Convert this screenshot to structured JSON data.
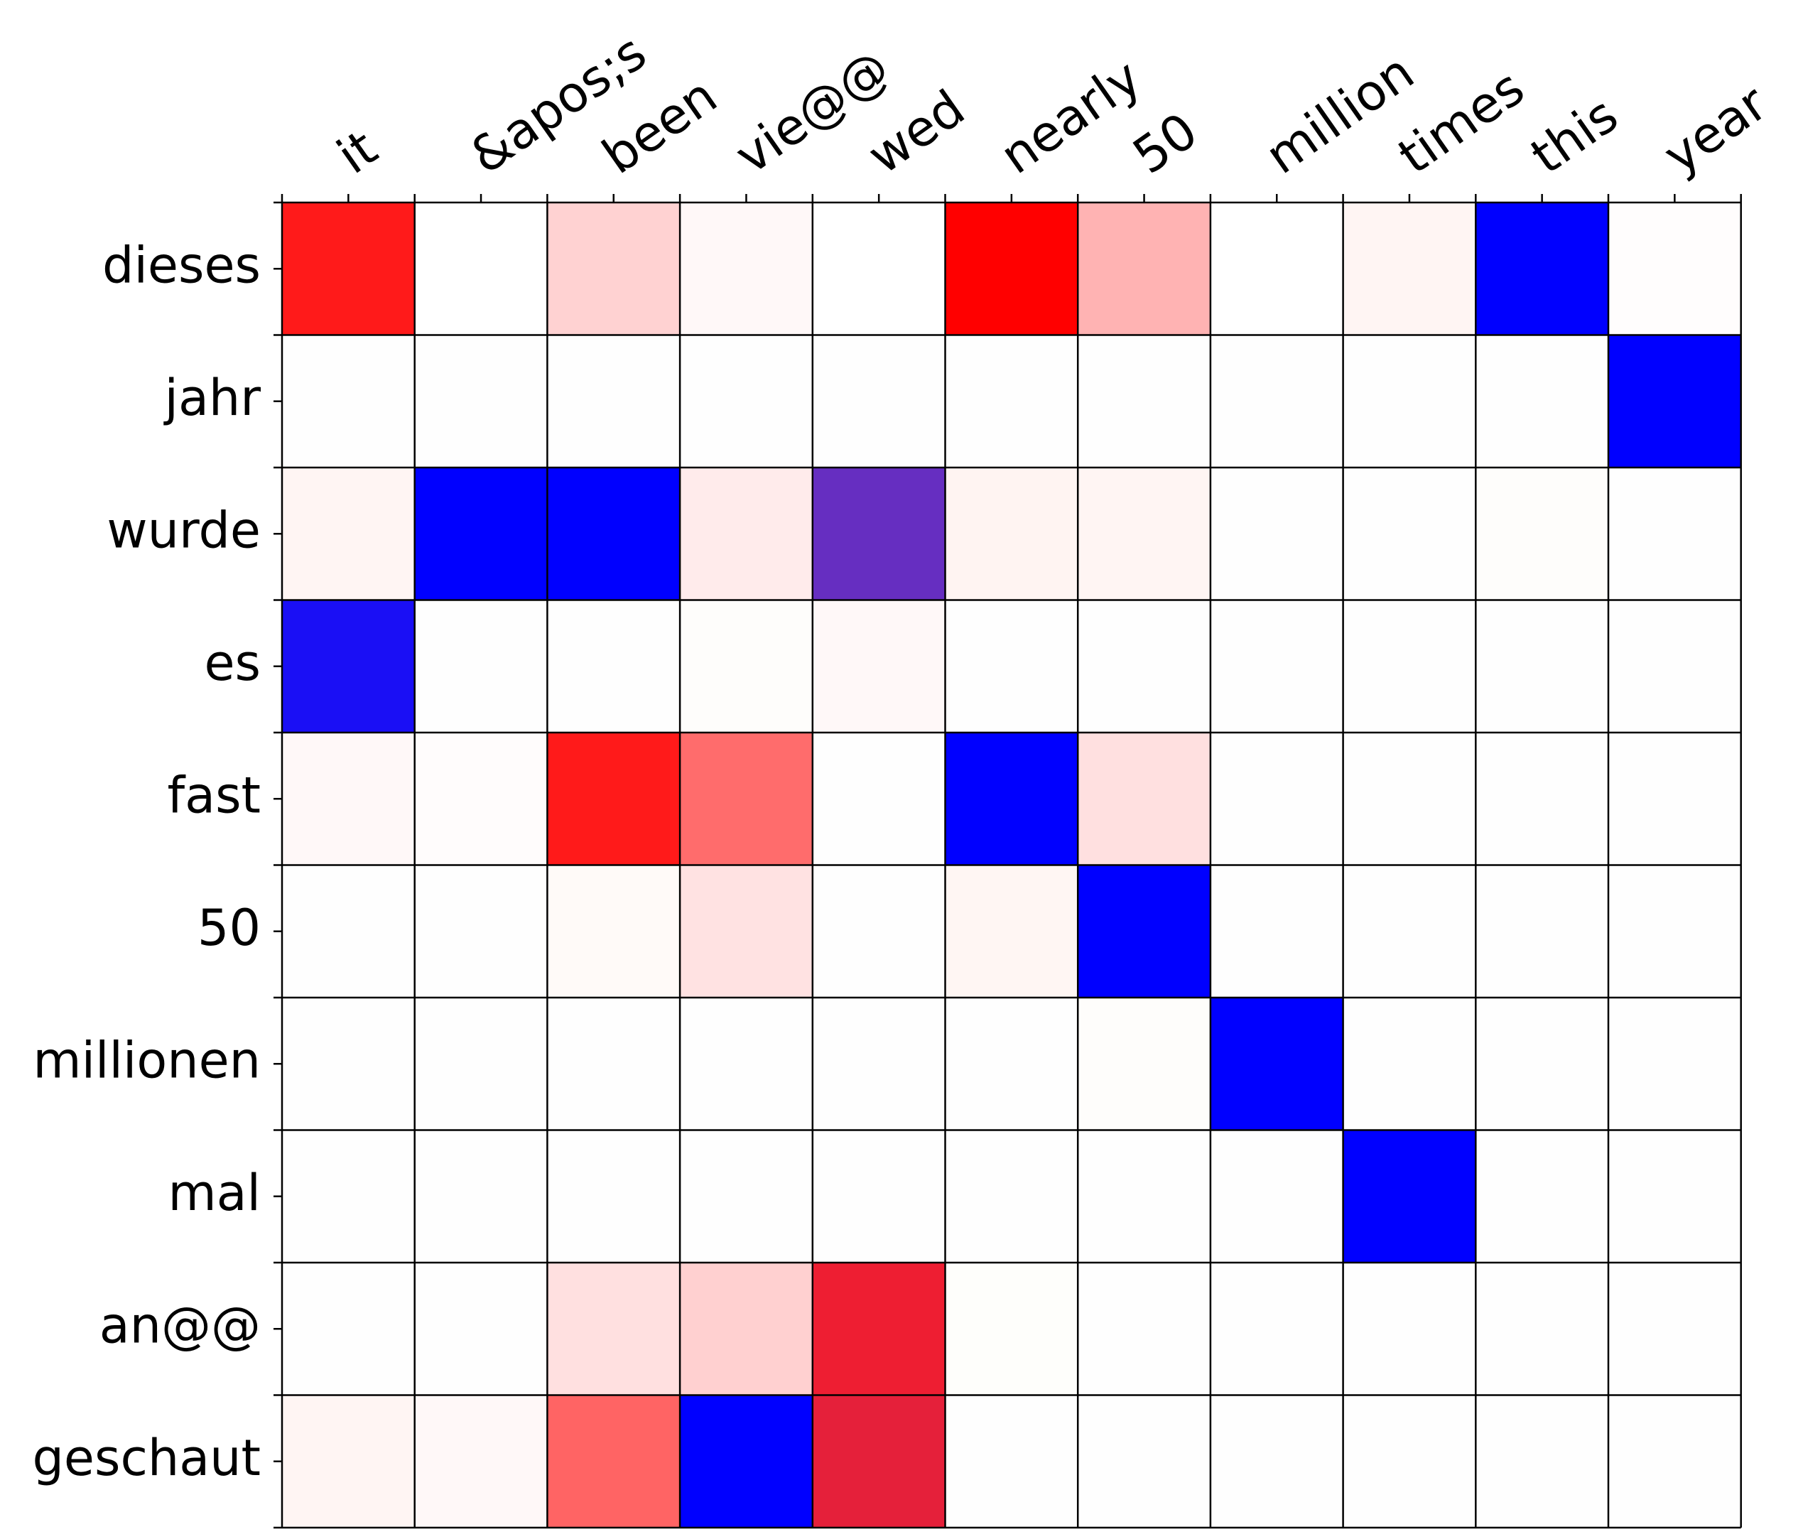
{
  "chart_data": {
    "type": "heatmap",
    "title": "",
    "xlabel": "",
    "ylabel": "",
    "x_labels": [
      "it",
      "&apos;s",
      "been",
      "vie@@",
      "wed",
      "nearly",
      "50",
      "million",
      "times",
      "this",
      "year"
    ],
    "y_labels": [
      "dieses",
      "jahr",
      "wurde",
      "es",
      "fast",
      "50",
      "millionen",
      "mal",
      "an@@",
      "geschaut"
    ],
    "grid": true,
    "colorbar": false,
    "cell_colors": [
      [
        "#FF1A1A",
        "#FFFFFF",
        "#FFD2D2",
        "#FFF8F8",
        "#FFFFFF",
        "#FF0000",
        "#FFB3B3",
        "#FFFFFF",
        "#FFF5F3",
        "#0000FF",
        "#FFFDFD"
      ],
      [
        "#FEFEFE",
        "#FEFEFE",
        "#FEFEFE",
        "#FEFEFE",
        "#FEFEFE",
        "#FEFEFE",
        "#FEFEFE",
        "#FEFEFE",
        "#FEFEFE",
        "#FEFEFE",
        "#0000FF"
      ],
      [
        "#FFF5F3",
        "#0000FF",
        "#0000FF",
        "#FFEBEB",
        "#662EC1",
        "#FFF4F2",
        "#FFF5F3",
        "#FEFEFE",
        "#FEFEFE",
        "#FEFDFB",
        "#FEFEFE"
      ],
      [
        "#1A0FF5",
        "#FEFEFE",
        "#FEFEFE",
        "#FEFDFB",
        "#FFF8F8",
        "#FEFEFE",
        "#FEFEFE",
        "#FEFEFE",
        "#FEFEFE",
        "#FEFEFE",
        "#FEFEFE"
      ],
      [
        "#FFF8F8",
        "#FFFCFC",
        "#FF1A1A",
        "#FF6C6C",
        "#FEFEFE",
        "#0000FF",
        "#FFE0E0",
        "#FEFEFE",
        "#FEFEFE",
        "#FEFEFE",
        "#FEFEFE"
      ],
      [
        "#FEFEFE",
        "#FEFEFE",
        "#FFFAF8",
        "#FFE2E2",
        "#FEFEFE",
        "#FFF6F3",
        "#0000FF",
        "#FEFEFE",
        "#FEFEFE",
        "#FEFEFE",
        "#FEFEFE"
      ],
      [
        "#FEFEFE",
        "#FEFEFE",
        "#FEFEFE",
        "#FEFEFE",
        "#FEFEFE",
        "#FEFEFE",
        "#FEFDFB",
        "#0000FF",
        "#FEFEFE",
        "#FEFEFE",
        "#FEFEFE"
      ],
      [
        "#FEFEFE",
        "#FEFEFE",
        "#FEFEFE",
        "#FEFEFE",
        "#FEFEFE",
        "#FEFEFE",
        "#FEFEFE",
        "#FEFEFE",
        "#0000FF",
        "#FEFEFE",
        "#FEFEFE"
      ],
      [
        "#FEFEFE",
        "#FEFEFE",
        "#FFE0E0",
        "#FFD0D0",
        "#EE1E32",
        "#FEFEFB",
        "#FEFEFE",
        "#FEFEFE",
        "#FEFEFE",
        "#FEFEFE",
        "#FEFEFE"
      ],
      [
        "#FFF5F3",
        "#FFF8F8",
        "#FF6464",
        "#0000FF",
        "#E5203A",
        "#FEFEFE",
        "#FEFEFE",
        "#FEFEFE",
        "#FEFEFE",
        "#FEFEFE",
        "#FEFEFE"
      ]
    ]
  }
}
